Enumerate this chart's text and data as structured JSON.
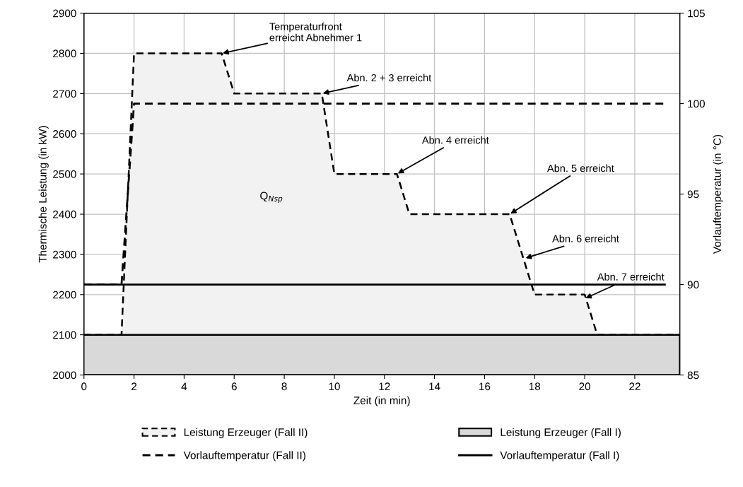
{
  "chart_data": {
    "type": "area",
    "xlabel": "Zeit (in min)",
    "ylabel": "Thermische Leistung (in kW)",
    "y2label": "Vorlauftemperatur (in °C)",
    "xlim": [
      0,
      23.8
    ],
    "xticks": [
      0,
      2,
      4,
      6,
      8,
      10,
      12,
      14,
      16,
      18,
      20,
      22
    ],
    "ylim": [
      2000,
      2900
    ],
    "yticks": [
      2000,
      2100,
      2200,
      2300,
      2400,
      2500,
      2600,
      2700,
      2800,
      2900
    ],
    "y2lim": [
      85,
      105
    ],
    "y2ticks": [
      85,
      90,
      95,
      100,
      105
    ],
    "grid": true,
    "legend": "bottom",
    "series": [
      {
        "name": "Leistung Erzeuger (Fall II)",
        "color": "#f2f2f2",
        "line_style": "dashed",
        "x": [
          0,
          1.5,
          2,
          5.5,
          6,
          9.5,
          10,
          12.5,
          13,
          17,
          18,
          20,
          20.5,
          23.8
        ],
        "values": [
          2100,
          2100,
          2800,
          2800,
          2700,
          2700,
          2500,
          2500,
          2400,
          2400,
          2200,
          2200,
          2100,
          2100
        ]
      },
      {
        "name": "Leistung Erzeuger (Fall I)",
        "color": "#d9d9d9",
        "line_style": "solid",
        "x": [
          0,
          23.8
        ],
        "values": [
          2100,
          2100
        ]
      },
      {
        "name": "Vorlauftemperatur (Fall II)",
        "type": "line",
        "color": "#000000",
        "line_style": "dashed",
        "axis": "y2",
        "x": [
          0,
          1.5,
          2,
          23.2
        ],
        "values": [
          90,
          90,
          100,
          100
        ]
      },
      {
        "name": "Vorlauftemperatur (Fall I)",
        "type": "line",
        "color": "#000000",
        "line_style": "solid",
        "axis": "y2",
        "x": [
          0,
          23.2
        ],
        "values": [
          90,
          90
        ]
      }
    ],
    "annotations": [
      {
        "text": "Temperaturfront\nerreicht Abnehmer 1",
        "x": 5.5,
        "y": 2800
      },
      {
        "text": "Abn. 2 + 3 erreicht",
        "x": 9.5,
        "y": 2700
      },
      {
        "text": "Abn. 4 erreicht",
        "x": 12.5,
        "y": 2500
      },
      {
        "text": "Abn. 5 erreicht",
        "x": 17,
        "y": 2400
      },
      {
        "text": "Abn. 6 erreicht",
        "x": 17.6,
        "y": 2290
      },
      {
        "text": "Abn. 7 erreicht",
        "x": 20,
        "y": 2190
      },
      "Q$_{Nsp}$"
    ]
  }
}
